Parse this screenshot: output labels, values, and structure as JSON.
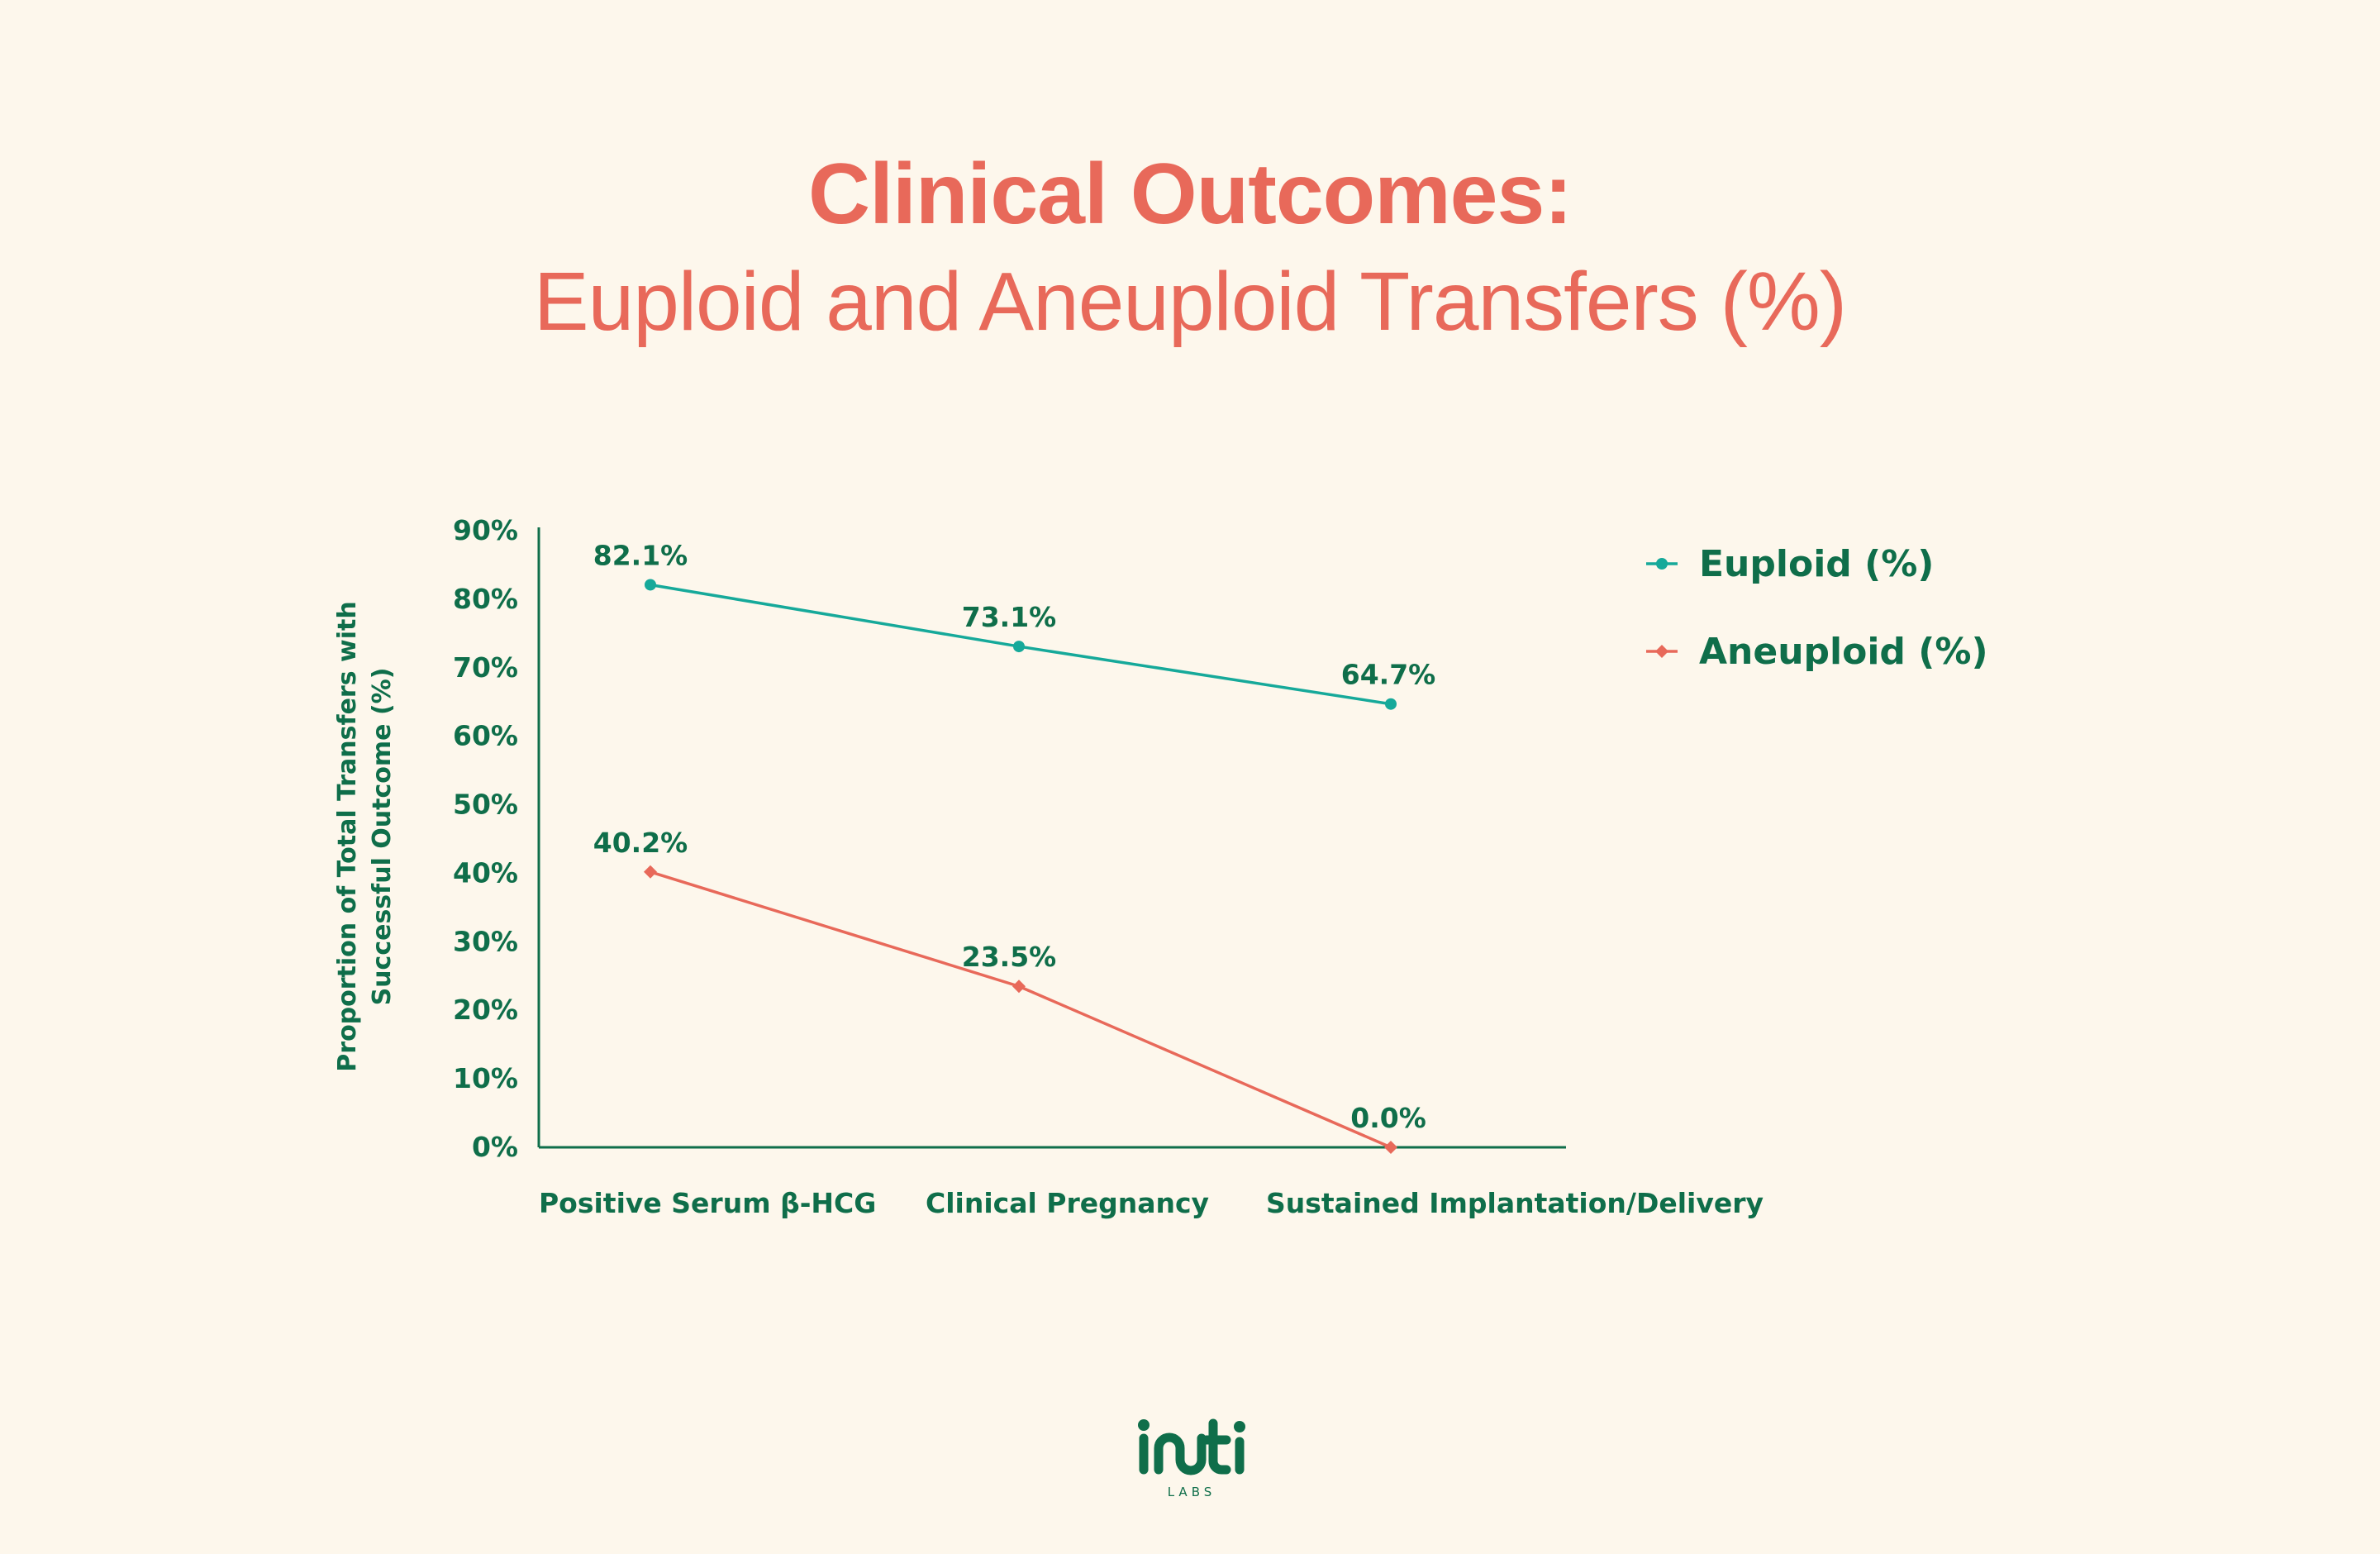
{
  "title": {
    "main": "Clinical Outcomes:",
    "sub": "Euploid and Aneuploid Transfers (%)"
  },
  "colors": {
    "background": "#fdf7ec",
    "title": "#e8695a",
    "text": "#0f6e4a",
    "euploid": "#16a99a",
    "aneuploid": "#e8695a",
    "axis": "#0f6e4a"
  },
  "chart_data": {
    "type": "line",
    "title": "",
    "xlabel": "",
    "ylabel": "Proportion of Total Transfers with Successful Outcome (%)",
    "ylabel_lines": [
      "Proportion of Total Transfers with",
      "Successful Outcome (%)"
    ],
    "categories": [
      "Positive Serum β-HCG",
      "Clinical Pregnancy",
      "Sustained Implantation/Delivery"
    ],
    "ylim": [
      0,
      90
    ],
    "yticks": [
      0,
      10,
      20,
      30,
      40,
      50,
      60,
      70,
      80,
      90
    ],
    "ytick_labels": [
      "0%",
      "10%",
      "20%",
      "30%",
      "40%",
      "50%",
      "60%",
      "70%",
      "80%",
      "90%"
    ],
    "grid": false,
    "legend": "top-right",
    "series": [
      {
        "name": "Euploid (%)",
        "key": "euploid",
        "marker": "circle",
        "values": [
          82.1,
          73.1,
          64.7
        ],
        "labels": [
          "82.1%",
          "73.1%",
          "64.7%"
        ]
      },
      {
        "name": "Aneuploid (%)",
        "key": "aneuploid",
        "marker": "diamond",
        "values": [
          40.2,
          23.5,
          0.0
        ],
        "labels": [
          "40.2%",
          "23.5%",
          "0.0%"
        ]
      }
    ]
  },
  "logo": {
    "name": "inti",
    "sub": "LABS"
  }
}
